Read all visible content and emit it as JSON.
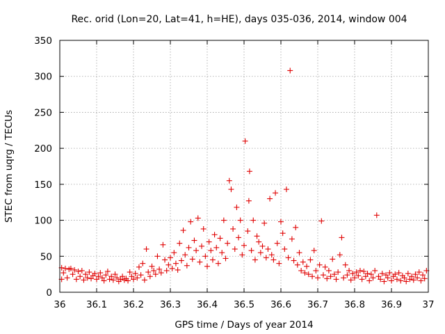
{
  "chart_data": {
    "type": "scatter",
    "title": "Rec. orid (Lon=20, Lat=41, h=HE), days 035-036, 2014, window 004",
    "xlabel": "GPS time / Days of year 2014",
    "ylabel": "STEC from uqrg / TECUs",
    "xlim": [
      36,
      37
    ],
    "ylim": [
      0,
      350
    ],
    "xticks": [
      36,
      36.1,
      36.2,
      36.3,
      36.4,
      36.5,
      36.6,
      36.7,
      36.8,
      36.9,
      37
    ],
    "xtick_labels": [
      "36",
      "36.1",
      "36.2",
      "36.3",
      "36.4",
      "36.5",
      "36.6",
      "36.7",
      "36.8",
      "36.9",
      "37"
    ],
    "yticks": [
      0,
      50,
      100,
      150,
      200,
      250,
      300,
      350
    ],
    "ytick_labels": [
      "0",
      "50",
      "100",
      "150",
      "200",
      "250",
      "300",
      "350"
    ],
    "grid": true,
    "marker": "+",
    "color": "#e00000",
    "series": [
      {
        "name": "STEC",
        "points": [
          [
            36.005,
            18
          ],
          [
            36.005,
            34
          ],
          [
            36.01,
            27
          ],
          [
            36.015,
            33
          ],
          [
            36.02,
            20
          ],
          [
            36.025,
            32
          ],
          [
            36.03,
            33
          ],
          [
            36.035,
            25
          ],
          [
            36.04,
            31
          ],
          [
            36.045,
            18
          ],
          [
            36.05,
            29
          ],
          [
            36.055,
            22
          ],
          [
            36.06,
            30
          ],
          [
            36.065,
            17
          ],
          [
            36.07,
            25
          ],
          [
            36.075,
            20
          ],
          [
            36.08,
            28
          ],
          [
            36.085,
            19
          ],
          [
            36.09,
            23
          ],
          [
            36.095,
            26
          ],
          [
            36.1,
            18
          ],
          [
            36.105,
            22
          ],
          [
            36.11,
            27
          ],
          [
            36.115,
            20
          ],
          [
            36.12,
            16
          ],
          [
            36.125,
            24
          ],
          [
            36.13,
            29
          ],
          [
            36.135,
            18
          ],
          [
            36.14,
            22
          ],
          [
            36.145,
            17
          ],
          [
            36.15,
            25
          ],
          [
            36.155,
            20
          ],
          [
            36.16,
            15
          ],
          [
            36.165,
            18
          ],
          [
            36.17,
            22
          ],
          [
            36.175,
            17
          ],
          [
            36.18,
            19
          ],
          [
            36.185,
            16
          ],
          [
            36.19,
            28
          ],
          [
            36.195,
            22
          ],
          [
            36.2,
            18
          ],
          [
            36.205,
            26
          ],
          [
            36.21,
            20
          ],
          [
            36.215,
            35
          ],
          [
            36.22,
            24
          ],
          [
            36.225,
            40
          ],
          [
            36.23,
            17
          ],
          [
            36.235,
            60
          ],
          [
            36.24,
            28
          ],
          [
            36.245,
            22
          ],
          [
            36.25,
            36
          ],
          [
            36.255,
            30
          ],
          [
            36.26,
            25
          ],
          [
            36.265,
            50
          ],
          [
            36.27,
            32
          ],
          [
            36.275,
            27
          ],
          [
            36.28,
            66
          ],
          [
            36.285,
            45
          ],
          [
            36.29,
            30
          ],
          [
            36.295,
            38
          ],
          [
            36.3,
            48
          ],
          [
            36.305,
            33
          ],
          [
            36.31,
            55
          ],
          [
            36.315,
            40
          ],
          [
            36.32,
            31
          ],
          [
            36.325,
            68
          ],
          [
            36.33,
            44
          ],
          [
            36.335,
            86
          ],
          [
            36.34,
            52
          ],
          [
            36.345,
            37
          ],
          [
            36.35,
            62
          ],
          [
            36.355,
            98
          ],
          [
            36.36,
            46
          ],
          [
            36.365,
            72
          ],
          [
            36.37,
            58
          ],
          [
            36.375,
            103
          ],
          [
            36.38,
            42
          ],
          [
            36.385,
            64
          ],
          [
            36.39,
            88
          ],
          [
            36.395,
            50
          ],
          [
            36.4,
            36
          ],
          [
            36.405,
            70
          ],
          [
            36.41,
            58
          ],
          [
            36.415,
            45
          ],
          [
            36.42,
            80
          ],
          [
            36.425,
            62
          ],
          [
            36.43,
            40
          ],
          [
            36.435,
            75
          ],
          [
            36.44,
            55
          ],
          [
            36.445,
            100
          ],
          [
            36.45,
            47
          ],
          [
            36.455,
            68
          ],
          [
            36.46,
            155
          ],
          [
            36.465,
            143
          ],
          [
            36.47,
            88
          ],
          [
            36.475,
            60
          ],
          [
            36.48,
            118
          ],
          [
            36.485,
            76
          ],
          [
            36.49,
            100
          ],
          [
            36.495,
            52
          ],
          [
            36.5,
            65
          ],
          [
            36.503,
            210
          ],
          [
            36.51,
            85
          ],
          [
            36.513,
            127
          ],
          [
            36.515,
            168
          ],
          [
            36.52,
            58
          ],
          [
            36.525,
            100
          ],
          [
            36.53,
            45
          ],
          [
            36.535,
            78
          ],
          [
            36.54,
            70
          ],
          [
            36.545,
            55
          ],
          [
            36.55,
            64
          ],
          [
            36.555,
            96
          ],
          [
            36.56,
            48
          ],
          [
            36.565,
            60
          ],
          [
            36.57,
            130
          ],
          [
            36.575,
            52
          ],
          [
            36.58,
            45
          ],
          [
            36.585,
            138
          ],
          [
            36.59,
            68
          ],
          [
            36.595,
            40
          ],
          [
            36.6,
            98
          ],
          [
            36.605,
            82
          ],
          [
            36.61,
            60
          ],
          [
            36.615,
            143
          ],
          [
            36.62,
            48
          ],
          [
            36.625,
            308
          ],
          [
            36.63,
            74
          ],
          [
            36.635,
            44
          ],
          [
            36.64,
            90
          ],
          [
            36.645,
            38
          ],
          [
            36.65,
            55
          ],
          [
            36.655,
            30
          ],
          [
            36.66,
            42
          ],
          [
            36.665,
            27
          ],
          [
            36.67,
            36
          ],
          [
            36.675,
            25
          ],
          [
            36.68,
            45
          ],
          [
            36.685,
            22
          ],
          [
            36.69,
            58
          ],
          [
            36.695,
            30
          ],
          [
            36.7,
            20
          ],
          [
            36.705,
            38
          ],
          [
            36.71,
            99
          ],
          [
            36.715,
            24
          ],
          [
            36.72,
            35
          ],
          [
            36.725,
            19
          ],
          [
            36.73,
            30
          ],
          [
            36.735,
            22
          ],
          [
            36.74,
            46
          ],
          [
            36.745,
            25
          ],
          [
            36.75,
            18
          ],
          [
            36.755,
            28
          ],
          [
            36.76,
            52
          ],
          [
            36.765,
            76
          ],
          [
            36.77,
            20
          ],
          [
            36.775,
            38
          ],
          [
            36.78,
            24
          ],
          [
            36.785,
            30
          ],
          [
            36.79,
            17
          ],
          [
            36.795,
            26
          ],
          [
            36.8,
            20
          ],
          [
            36.805,
            28
          ],
          [
            36.81,
            23
          ],
          [
            36.815,
            30
          ],
          [
            36.82,
            18
          ],
          [
            36.825,
            29
          ],
          [
            36.83,
            22
          ],
          [
            36.835,
            26
          ],
          [
            36.84,
            16
          ],
          [
            36.845,
            25
          ],
          [
            36.85,
            20
          ],
          [
            36.855,
            30
          ],
          [
            36.86,
            107
          ],
          [
            36.865,
            22
          ],
          [
            36.87,
            18
          ],
          [
            36.875,
            26
          ],
          [
            36.88,
            15
          ],
          [
            36.885,
            24
          ],
          [
            36.89,
            20
          ],
          [
            36.895,
            27
          ],
          [
            36.9,
            16
          ],
          [
            36.905,
            22
          ],
          [
            36.91,
            25
          ],
          [
            36.915,
            18
          ],
          [
            36.92,
            27
          ],
          [
            36.925,
            16
          ],
          [
            36.93,
            23
          ],
          [
            36.935,
            20
          ],
          [
            36.94,
            15
          ],
          [
            36.945,
            26
          ],
          [
            36.95,
            18
          ],
          [
            36.955,
            22
          ],
          [
            36.96,
            17
          ],
          [
            36.965,
            25
          ],
          [
            36.97,
            20
          ],
          [
            36.975,
            28
          ],
          [
            36.98,
            16
          ],
          [
            36.985,
            24
          ],
          [
            36.99,
            19
          ],
          [
            36.995,
            30
          ]
        ]
      }
    ]
  }
}
